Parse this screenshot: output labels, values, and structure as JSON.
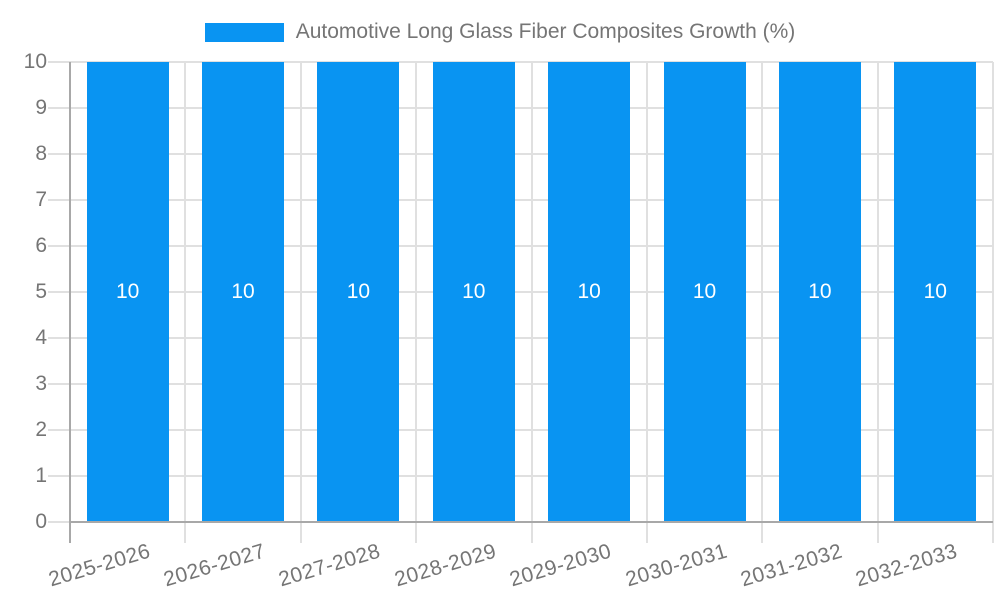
{
  "legend": {
    "items": [
      {
        "label": "Automotive Long Glass Fiber Composites Growth (%)",
        "color": "#0994f2"
      }
    ],
    "position": "top-center"
  },
  "chart_data": {
    "type": "bar",
    "title": "Automotive Long Glass Fiber Composites Growth (%)",
    "categories": [
      "2025-2026",
      "2026-2027",
      "2027-2028",
      "2028-2029",
      "2029-2030",
      "2030-2031",
      "2031-2032",
      "2032-2033"
    ],
    "series": [
      {
        "name": "Automotive Long Glass Fiber Composites Growth (%)",
        "values": [
          10,
          10,
          10,
          10,
          10,
          10,
          10,
          10
        ]
      }
    ],
    "data_labels": [
      "10",
      "10",
      "10",
      "10",
      "10",
      "10",
      "10",
      "10"
    ],
    "xlabel": "",
    "ylabel": "",
    "ylim": [
      0,
      10
    ],
    "yticks": [
      0,
      1,
      2,
      3,
      4,
      5,
      6,
      7,
      8,
      9,
      10
    ],
    "grid": true,
    "legend_position": "top",
    "x_label_rotation_deg": -16.5,
    "colors": {
      "bar": "#0994f2",
      "text": "#757575",
      "grid": "#e0e0e0",
      "axis": "#a8a8a8",
      "value_label": "#ffffff",
      "background": "#ffffff"
    }
  }
}
